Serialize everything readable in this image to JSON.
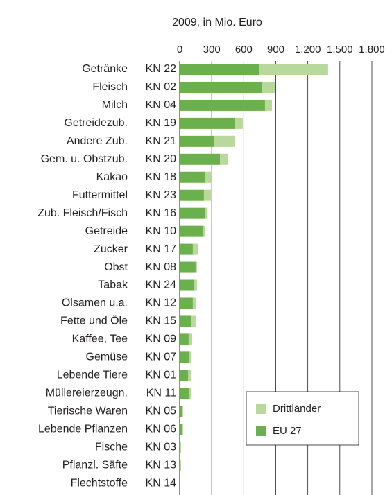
{
  "chart_data": {
    "type": "stacked_barh",
    "title": "2009, in Mio. Euro",
    "categories": [
      "Getränke",
      "Fleisch",
      "Milch",
      "Getreidezub.",
      "Andere Zub.",
      "Gem. u. Obstzub.",
      "Kakao",
      "Futtermittel",
      "Zub. Fleisch/Fisch",
      "Getreide",
      "Zucker",
      "Obst",
      "Tabak",
      "Ölsamen u.a.",
      "Fette und Öle",
      "Kaffee, Tee",
      "Gemüse",
      "Lebende Tiere",
      "Müllereierzeugn.",
      "Tierische Waren",
      "Lebende Pflanzen",
      "Fische",
      "Pflanzl. Säfte",
      "Flechtstoffe"
    ],
    "category_codes": [
      "KN 22",
      "KN 02",
      "KN 04",
      "KN 19",
      "KN 21",
      "KN 20",
      "KN 18",
      "KN 23",
      "KN 16",
      "KN 10",
      "KN 17",
      "KN 08",
      "KN 24",
      "KN 12",
      "KN 15",
      "KN 09",
      "KN 07",
      "KN 01",
      "KN 11",
      "KN 05",
      "KN 06",
      "KN 03",
      "KN 13",
      "KN 14"
    ],
    "series": [
      {
        "name": "EU 27",
        "color": "#6ab04c",
        "values": [
          747,
          773,
          799,
          520,
          325,
          377,
          234,
          227,
          240,
          221,
          123,
          149,
          130,
          123,
          104,
          84,
          91,
          78,
          91,
          26,
          26,
          6,
          6,
          3
        ]
      },
      {
        "name": "Drittländer",
        "color": "#b9d99c",
        "values": [
          643,
          124,
          65,
          71,
          188,
          78,
          71,
          65,
          20,
          19,
          46,
          13,
          32,
          33,
          45,
          33,
          13,
          26,
          13,
          6,
          6,
          7,
          7,
          2
        ]
      }
    ],
    "xlim": [
      0,
      1800
    ],
    "xticks": [
      0,
      300,
      600,
      900,
      {
        "value": 1200,
        "label": "1.200"
      },
      {
        "value": 1500,
        "label": "1.500"
      },
      {
        "value": 1800,
        "label": "1.800"
      }
    ],
    "grid": true,
    "legend": "lower right"
  }
}
